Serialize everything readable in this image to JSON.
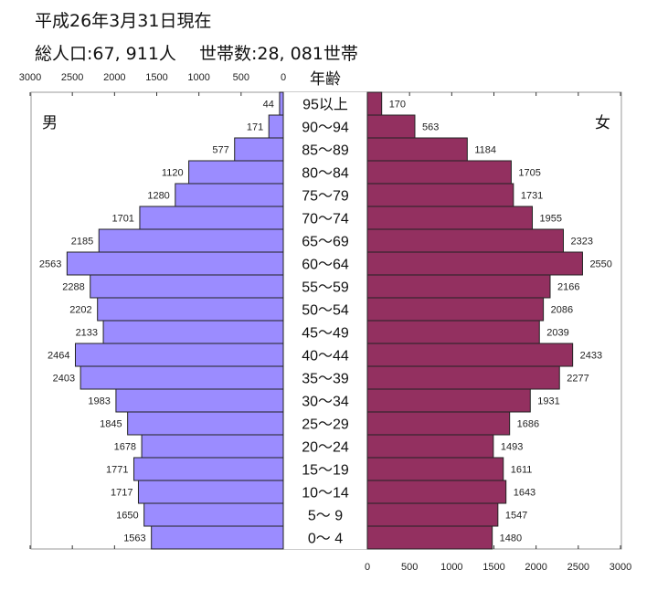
{
  "header": {
    "date": "平成26年3月31日現在",
    "summary": "総人口:67, 911人　 世帯数:28, 081世帯"
  },
  "chart_data": {
    "type": "bar",
    "orientation": "horizontal-pyramid",
    "axis_title": "年齢",
    "male_label": "男",
    "female_label": "女",
    "categories": [
      "95以上",
      "90～94",
      "85～89",
      "80～84",
      "75～79",
      "70～74",
      "65～69",
      "60～64",
      "55～59",
      "50～54",
      "45～49",
      "40～44",
      "35～39",
      "30～34",
      "25～29",
      "20～24",
      "15～19",
      "10～14",
      "5～ 9",
      "0～ 4"
    ],
    "series": [
      {
        "name": "男",
        "color": "#9b8cff",
        "values": [
          44,
          171,
          577,
          1120,
          1280,
          1701,
          2185,
          2563,
          2288,
          2202,
          2133,
          2464,
          2403,
          1983,
          1845,
          1678,
          1771,
          1717,
          1650,
          1563
        ]
      },
      {
        "name": "女",
        "color": "#933060",
        "values": [
          170,
          563,
          1184,
          1705,
          1731,
          1955,
          2323,
          2550,
          2166,
          2086,
          2039,
          2433,
          2277,
          1931,
          1686,
          1493,
          1611,
          1643,
          1547,
          1480
        ]
      }
    ],
    "male_ticks": [
      "3000",
      "2500",
      "2000",
      "1500",
      "1000",
      "500",
      "0"
    ],
    "female_ticks": [
      "0",
      "500",
      "1000",
      "1500",
      "2000",
      "2500",
      "3000"
    ],
    "xlim": [
      0,
      3000
    ],
    "grid": false
  }
}
